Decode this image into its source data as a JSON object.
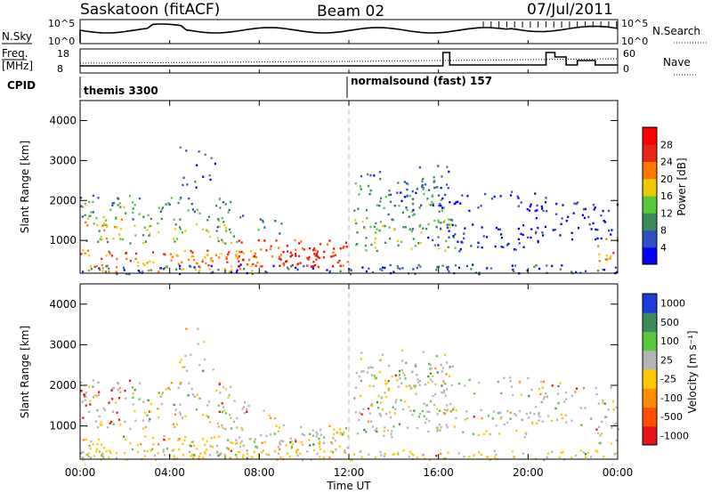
{
  "header": {
    "station": "Saskatoon (fitACF)",
    "beam": "Beam 02",
    "date": "07/Jul/2011"
  },
  "strips": {
    "nsky_label": "N.Sky",
    "nsky_ticks": [
      "10^5",
      "10^0"
    ],
    "nsearch_label": "N.Search",
    "nsearch_ticks": [
      "10^5",
      "10^0"
    ],
    "freq_label_1": "Freq.",
    "freq_label_2": "[MHz]",
    "freq_ticks": [
      "18",
      "8"
    ],
    "nave_label": "Nave",
    "nave_ticks": [
      "60",
      "0"
    ],
    "cpid_label": "CPID",
    "cpid_1": "themis 3300",
    "cpid_2": "normalsound (fast) 157"
  },
  "power_panel": {
    "ylabel": "Slant Range [km]",
    "yticks": [
      "1000",
      "2000",
      "3000",
      "4000"
    ],
    "colorbar_label": "Power [dB]",
    "colorbar_ticks": [
      "4",
      "8",
      "12",
      "16",
      "20",
      "24",
      "28"
    ],
    "colors": [
      "#0000ff",
      "#3050c0",
      "#3c8c5a",
      "#55c83c",
      "#f0c800",
      "#ff7800",
      "#e62814",
      "#ff0000"
    ]
  },
  "velocity_panel": {
    "ylabel": "Slant Range [km]",
    "yticks": [
      "1000",
      "2000",
      "3000",
      "4000"
    ],
    "colorbar_label": "Velocity [m s⁻¹]",
    "colorbar_ticks": [
      "1000",
      "500",
      "100",
      "25",
      "-25",
      "-100",
      "-500",
      "-1000"
    ],
    "colors": [
      "#1e3cdc",
      "#3c8c5a",
      "#55c83c",
      "#b4b4b4",
      "#ffc800",
      "#ff8c00",
      "#ff5000",
      "#e61414"
    ]
  },
  "xaxis": {
    "ticks": [
      "00:00",
      "04:00",
      "08:00",
      "12:00",
      "16:00",
      "20:00",
      "00:00"
    ],
    "label": "Time UT"
  },
  "chart_data": {
    "type": "heatmap",
    "x_range_hours": [
      0,
      24
    ],
    "y_range_km": [
      180,
      4500
    ],
    "power_scale_db": [
      0,
      30
    ],
    "velocity_scale_ms": [
      -1000,
      1000
    ],
    "strip_ranges": {
      "nsky": [
        1,
        100000
      ],
      "freq_mhz": [
        8,
        18
      ],
      "nave": [
        0,
        60
      ]
    },
    "cpid_change_hour": 12
  }
}
